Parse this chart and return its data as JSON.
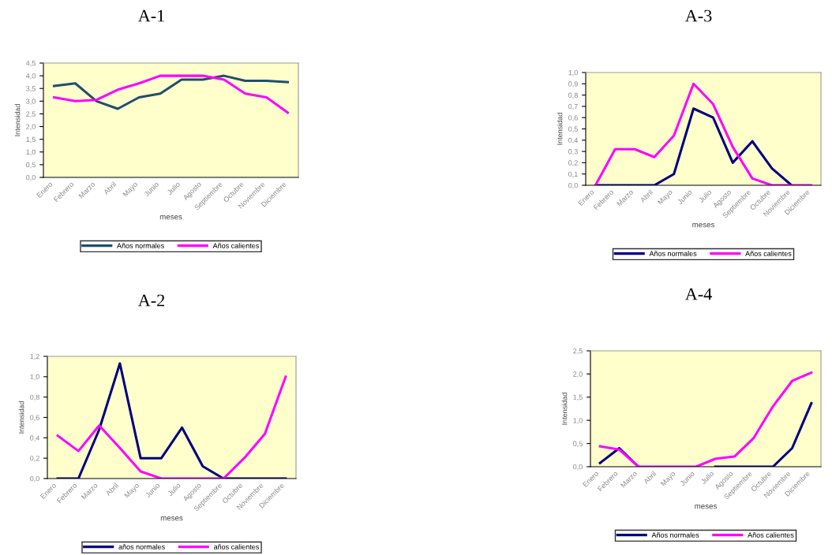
{
  "chart_data": [
    {
      "type": "line",
      "title": "A-1",
      "xlabel": "meses",
      "ylabel": "Intensidad",
      "categories": [
        "Enero",
        "Febrero",
        "Marzo",
        "Abril",
        "Mayo",
        "Junio",
        "Julio",
        "Agosto",
        "Septiembre",
        "Octubre",
        "Noviembre",
        "Diciembre"
      ],
      "series": [
        {
          "name": "Años normales",
          "color": "#1f4e6e",
          "values": [
            3.6,
            3.7,
            3.0,
            2.7,
            3.15,
            3.3,
            3.85,
            3.85,
            4.0,
            3.8,
            3.8,
            3.75
          ]
        },
        {
          "name": "Años calientes",
          "color": "#ff00ff",
          "values": [
            3.15,
            3.0,
            3.05,
            3.45,
            3.7,
            4.0,
            4.0,
            4.0,
            3.85,
            3.3,
            3.15,
            2.55
          ]
        }
      ],
      "ylim": [
        0,
        4.5
      ],
      "yticks": [
        {
          "value": 0,
          "label": "0,0"
        },
        {
          "value": 0.5,
          "label": "0,5"
        },
        {
          "value": 1,
          "label": "1,0"
        },
        {
          "value": 1.5,
          "label": "1,5"
        },
        {
          "value": 2,
          "label": "2,0"
        },
        {
          "value": 2.5,
          "label": "2,5"
        },
        {
          "value": 3,
          "label": "3,0"
        },
        {
          "value": 3.5,
          "label": "3,5"
        },
        {
          "value": 4,
          "label": "4,0"
        },
        {
          "value": 4.5,
          "label": "4,5"
        }
      ],
      "grid": false,
      "legend": "bottom"
    },
    {
      "type": "line",
      "title": "A-3",
      "xlabel": "meses",
      "ylabel": "Intensidad",
      "categories": [
        "Enero",
        "Febrero",
        "Marzo",
        "Abril",
        "Mayo",
        "Junio",
        "Julio",
        "Agosto",
        "Septiembre",
        "Octubre",
        "Noviembre",
        "Diciembre"
      ],
      "series": [
        {
          "name": "Años normales",
          "color": "#000080",
          "values": [
            0,
            0,
            0,
            0,
            0.1,
            0.68,
            0.6,
            0.2,
            0.39,
            0.15,
            0,
            null
          ]
        },
        {
          "name": "Años calientes",
          "color": "#ff00ff",
          "values": [
            0,
            0.32,
            0.32,
            0.25,
            0.44,
            0.9,
            0.72,
            0.34,
            0.06,
            0,
            0,
            0
          ]
        }
      ],
      "ylim": [
        0,
        1.0
      ],
      "yticks": [
        {
          "value": 0,
          "label": "0,0"
        },
        {
          "value": 0.1,
          "label": "0,1"
        },
        {
          "value": 0.2,
          "label": "0,2"
        },
        {
          "value": 0.3,
          "label": "0,3"
        },
        {
          "value": 0.4,
          "label": "0,4"
        },
        {
          "value": 0.5,
          "label": "0,5"
        },
        {
          "value": 0.6,
          "label": "0,6"
        },
        {
          "value": 0.7,
          "label": "0,7"
        },
        {
          "value": 0.8,
          "label": "0,8"
        },
        {
          "value": 0.9,
          "label": "0,9"
        },
        {
          "value": 1.0,
          "label": "1,0"
        }
      ],
      "grid": false,
      "legend": "bottom"
    },
    {
      "type": "line",
      "title": "A-2",
      "xlabel": "meses",
      "ylabel": "Intensidad",
      "categories": [
        "Enero",
        "Febrero",
        "Marzo",
        "Abril",
        "Mayo",
        "Junio",
        "Julio",
        "Agosto",
        "Septiembre",
        "Octubre",
        "Noviembre",
        "Diciembre"
      ],
      "series": [
        {
          "name": "años normales",
          "color": "#000080",
          "values": [
            0,
            0,
            0.48,
            1.13,
            0.2,
            0.2,
            0.5,
            0.12,
            0,
            0,
            0,
            0
          ]
        },
        {
          "name": "años calientes",
          "color": "#ff00ff",
          "values": [
            0.42,
            0.27,
            0.52,
            0.3,
            0.07,
            0,
            0,
            0,
            0,
            0.2,
            0.44,
            1.0
          ]
        }
      ],
      "ylim": [
        0,
        1.2
      ],
      "yticks": [
        {
          "value": 0,
          "label": "0,0"
        },
        {
          "value": 0.2,
          "label": "0,2"
        },
        {
          "value": 0.4,
          "label": "0,4"
        },
        {
          "value": 0.6,
          "label": "0,6"
        },
        {
          "value": 0.8,
          "label": "0,8"
        },
        {
          "value": 1.0,
          "label": "1,0"
        },
        {
          "value": 1.2,
          "label": "1,2"
        }
      ],
      "grid": false,
      "legend": "bottom"
    },
    {
      "type": "line",
      "title": "A-4",
      "xlabel": "meses",
      "ylabel": "Intensidad",
      "categories": [
        "Enero",
        "Febrero",
        "Marzo",
        "Abril",
        "Mayo",
        "Junio",
        "Julio",
        "Agosto",
        "Septiembre",
        "Octubre",
        "Noviembre",
        "Diciembre"
      ],
      "series": [
        {
          "name": "Años normales",
          "color": "#000080",
          "values": [
            0.08,
            0.4,
            0,
            null,
            null,
            null,
            0,
            0,
            0,
            0,
            0.4,
            1.37
          ]
        },
        {
          "name": "Años calientes",
          "color": "#ff00ff",
          "values": [
            0.44,
            0.37,
            0,
            0,
            0,
            0,
            0.17,
            0.22,
            0.62,
            1.3,
            1.85,
            2.03
          ]
        }
      ],
      "ylim": [
        0,
        2.5
      ],
      "yticks": [
        {
          "value": 0,
          "label": "0,0"
        },
        {
          "value": 0.5,
          "label": "0,5"
        },
        {
          "value": 1.0,
          "label": "1,0"
        },
        {
          "value": 1.5,
          "label": "1,5"
        },
        {
          "value": 2.0,
          "label": "2,0"
        },
        {
          "value": 2.5,
          "label": "2,5"
        }
      ],
      "grid": false,
      "legend": "bottom"
    }
  ]
}
